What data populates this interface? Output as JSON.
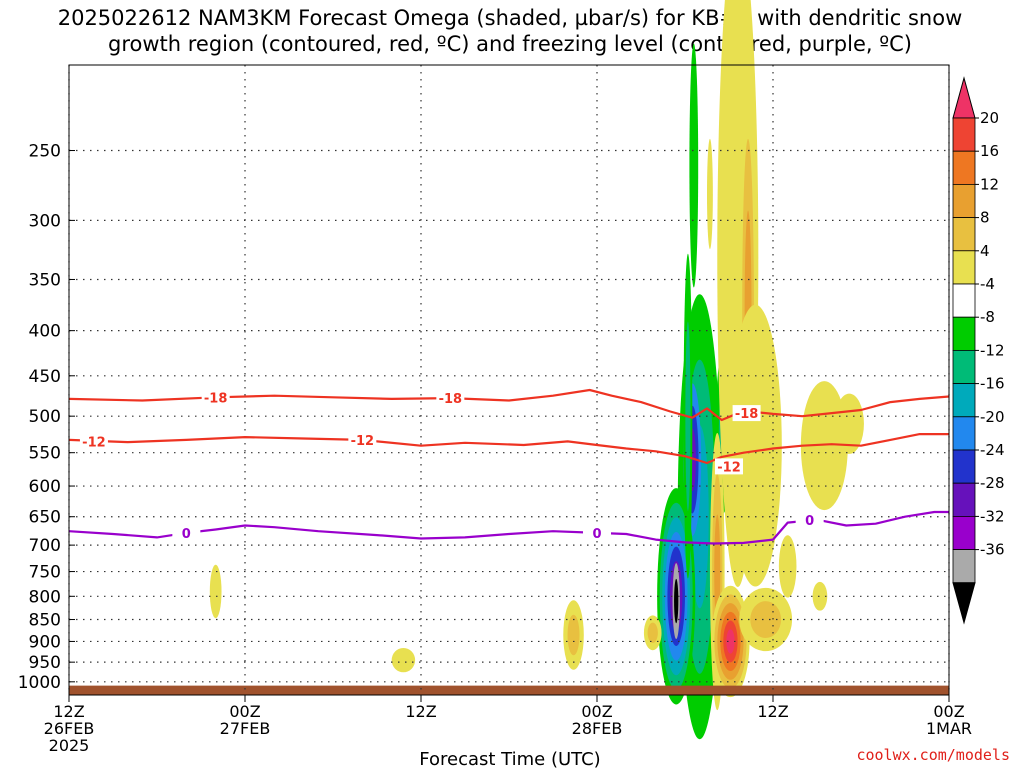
{
  "title_line1": "2025022612 NAM3KM Forecast Omega (shaded, µbar/s) for KB#2 with dendritic snow",
  "title_line2": "growth region (contoured, red, ºC) and freezing level (contoured, purple, ºC)",
  "credit": "coolwx.com/models",
  "chart_data": {
    "type": "heatmap",
    "xlabel": "Forecast Time (UTC)",
    "ylabel": "",
    "x_ticks": [
      {
        "h": 0,
        "lines": [
          "12Z",
          "26FEB",
          "2025"
        ]
      },
      {
        "h": 12,
        "lines": [
          "00Z",
          "27FEB"
        ]
      },
      {
        "h": 24,
        "lines": [
          "12Z"
        ]
      },
      {
        "h": 36,
        "lines": [
          "00Z",
          "28FEB"
        ]
      },
      {
        "h": 48,
        "lines": [
          "12Z"
        ]
      },
      {
        "h": 60,
        "lines": [
          "00Z",
          "1MAR"
        ]
      }
    ],
    "x_range_hours": [
      0,
      60
    ],
    "y_range_mb": [
      200,
      1035
    ],
    "y_scale": "log",
    "y_ticks": [
      250,
      300,
      350,
      400,
      450,
      500,
      550,
      600,
      650,
      700,
      750,
      800,
      850,
      900,
      950,
      1000
    ],
    "grid": "dotted",
    "terrain_color": "#a0522d",
    "terrain_top_mb": 1010,
    "colorbar": {
      "labels": [
        "20",
        "16",
        "12",
        "8",
        "4",
        "-4",
        "-8",
        "-12",
        "-16",
        "-20",
        "-24",
        "-28",
        "-32",
        "-36"
      ],
      "colors": [
        "#ee3366",
        "#ee4433",
        "#ee7722",
        "#e8a030",
        "#e8c040",
        "#e8e050",
        "#ffffff",
        "#00cc00",
        "#00bb77",
        "#00aabb",
        "#2288ee",
        "#2233cc",
        "#6611bb",
        "#9900cc",
        "#aaaaaa",
        "#000000"
      ]
    },
    "dgz_contours": [
      {
        "label": "-18",
        "color": "#ee3322",
        "points": [
          [
            0,
            478
          ],
          [
            5,
            480
          ],
          [
            10,
            476
          ],
          [
            14,
            474
          ],
          [
            18,
            476
          ],
          [
            22,
            478
          ],
          [
            26,
            477
          ],
          [
            30,
            480
          ],
          [
            33,
            474
          ],
          [
            35.5,
            467
          ],
          [
            37,
            474
          ],
          [
            39,
            482
          ],
          [
            41,
            494
          ],
          [
            42.5,
            502
          ],
          [
            43.5,
            490
          ],
          [
            44.5,
            505
          ],
          [
            46,
            493
          ],
          [
            48,
            497
          ],
          [
            50,
            500
          ],
          [
            52,
            496
          ],
          [
            54,
            492
          ],
          [
            56,
            482
          ],
          [
            58,
            478
          ],
          [
            60,
            475
          ]
        ],
        "label_positions": [
          [
            10,
            476
          ],
          [
            26,
            477
          ],
          [
            46.2,
            496
          ]
        ]
      },
      {
        "label": "-12",
        "color": "#ee3322",
        "points": [
          [
            0,
            532
          ],
          [
            4,
            535
          ],
          [
            8,
            532
          ],
          [
            12,
            528
          ],
          [
            16,
            530
          ],
          [
            20,
            532
          ],
          [
            24,
            540
          ],
          [
            27,
            536
          ],
          [
            31,
            539
          ],
          [
            34,
            534
          ],
          [
            36,
            539
          ],
          [
            38,
            544
          ],
          [
            40,
            548
          ],
          [
            42,
            555
          ],
          [
            43.5,
            565
          ],
          [
            44.5,
            556
          ],
          [
            46,
            550
          ],
          [
            48,
            544
          ],
          [
            50,
            540
          ],
          [
            52,
            538
          ],
          [
            54,
            540
          ],
          [
            56,
            532
          ],
          [
            58,
            524
          ],
          [
            60,
            524
          ]
        ],
        "label_positions": [
          [
            1.7,
            534
          ],
          [
            20,
            532
          ],
          [
            45,
            570
          ]
        ]
      }
    ],
    "freezing_contour": {
      "label": "0",
      "color": "#9900cc",
      "points": [
        [
          0,
          675
        ],
        [
          3,
          680
        ],
        [
          6,
          686
        ],
        [
          8,
          678
        ],
        [
          10,
          672
        ],
        [
          12,
          665
        ],
        [
          14,
          668
        ],
        [
          17,
          675
        ],
        [
          21,
          682
        ],
        [
          24,
          688
        ],
        [
          27,
          686
        ],
        [
          30,
          680
        ],
        [
          33,
          675
        ],
        [
          36,
          678
        ],
        [
          38,
          680
        ],
        [
          40,
          690
        ],
        [
          42,
          695
        ],
        [
          44,
          697
        ],
        [
          46,
          696
        ],
        [
          48,
          690
        ],
        [
          49,
          660
        ],
        [
          51,
          655
        ],
        [
          53,
          665
        ],
        [
          55,
          662
        ],
        [
          57,
          650
        ],
        [
          59,
          642
        ],
        [
          60,
          642
        ]
      ],
      "label_positions": [
        [
          8,
          678
        ],
        [
          36,
          678
        ],
        [
          50.5,
          656
        ]
      ]
    },
    "omega_features": [
      {
        "h": 10.0,
        "mb": 790,
        "dh": 0.4,
        "dmb": 55,
        "colors": [
          "#e8e050"
        ]
      },
      {
        "h": 22.8,
        "mb": 945,
        "dh": 0.8,
        "dmb": 30,
        "colors": [
          "#e8e050"
        ]
      },
      {
        "h": 34.4,
        "mb": 885,
        "dh": 0.7,
        "dmb": 80,
        "colors": [
          "#e8e050",
          "#e8c040"
        ]
      },
      {
        "h": 42.6,
        "mb": 260,
        "dh": 0.3,
        "dmb": 80,
        "colors": [
          "#00cc00"
        ]
      },
      {
        "h": 43.0,
        "mb": 650,
        "dh": 1.5,
        "dmb": 340,
        "colors": [
          "#00cc00",
          "#00bb77",
          "#00aabb"
        ]
      },
      {
        "h": 42.5,
        "mb": 560,
        "dh": 0.6,
        "dmb": 110,
        "colors": [
          "#2288ee",
          "#2233cc",
          "#6611bb"
        ]
      },
      {
        "h": 41.4,
        "mb": 800,
        "dh": 1.3,
        "dmb": 220,
        "colors": [
          "#00cc00",
          "#00bb77",
          "#00aabb",
          "#2288ee",
          "#2233cc",
          "#6611bb",
          "#9900cc"
        ]
      },
      {
        "h": 41.4,
        "mb": 810,
        "dh": 0.25,
        "dmb": 80,
        "colors": [
          "#aaaaaa",
          "#000000"
        ]
      },
      {
        "h": 39.8,
        "mb": 880,
        "dh": 0.6,
        "dmb": 40,
        "colors": [
          "#e8e050",
          "#e8c040"
        ]
      },
      {
        "h": 42.2,
        "mb": 500,
        "dh": 0.3,
        "dmb": 200,
        "colors": [
          "#00cc00",
          "#00bb77"
        ]
      },
      {
        "h": 44.6,
        "mb": 520,
        "dh": 0.5,
        "dmb": 110,
        "colors": [
          "#00cc00",
          "#00bb77"
        ]
      },
      {
        "h": 43.7,
        "mb": 280,
        "dh": 0.2,
        "dmb": 40,
        "colors": [
          "#e8e050"
        ]
      },
      {
        "h": 44.2,
        "mb": 750,
        "dh": 0.5,
        "dmb": 260,
        "colors": [
          "#e8e050",
          "#e8c040",
          "#e8a030"
        ]
      },
      {
        "h": 45.1,
        "mb": 900,
        "dh": 1.3,
        "dmb": 130,
        "colors": [
          "#e8e050",
          "#e8c040",
          "#e8a030",
          "#ee7722",
          "#ee4433",
          "#ee3366"
        ]
      },
      {
        "h": 45.6,
        "mb": 330,
        "dh": 1.4,
        "dmb": 230,
        "colors": [
          "#e8e050"
        ]
      },
      {
        "h": 46.3,
        "mb": 380,
        "dh": 0.4,
        "dmb": 160,
        "colors": [
          "#e8c040",
          "#e8a030"
        ]
      },
      {
        "h": 46.8,
        "mb": 540,
        "dh": 1.8,
        "dmb": 190,
        "colors": [
          "#e8e050"
        ]
      },
      {
        "h": 47.5,
        "mb": 850,
        "dh": 1.8,
        "dmb": 70,
        "colors": [
          "#e8e050",
          "#e8c040"
        ]
      },
      {
        "h": 49.0,
        "mb": 740,
        "dh": 0.6,
        "dmb": 60,
        "colors": [
          "#e8e050"
        ]
      },
      {
        "h": 51.5,
        "mb": 540,
        "dh": 1.6,
        "dmb": 90,
        "colors": [
          "#e8e050"
        ]
      },
      {
        "h": 53.2,
        "mb": 510,
        "dh": 1.0,
        "dmb": 40,
        "colors": [
          "#e8e050"
        ]
      },
      {
        "h": 51.2,
        "mb": 800,
        "dh": 0.5,
        "dmb": 30,
        "colors": [
          "#e8e050"
        ]
      }
    ]
  }
}
